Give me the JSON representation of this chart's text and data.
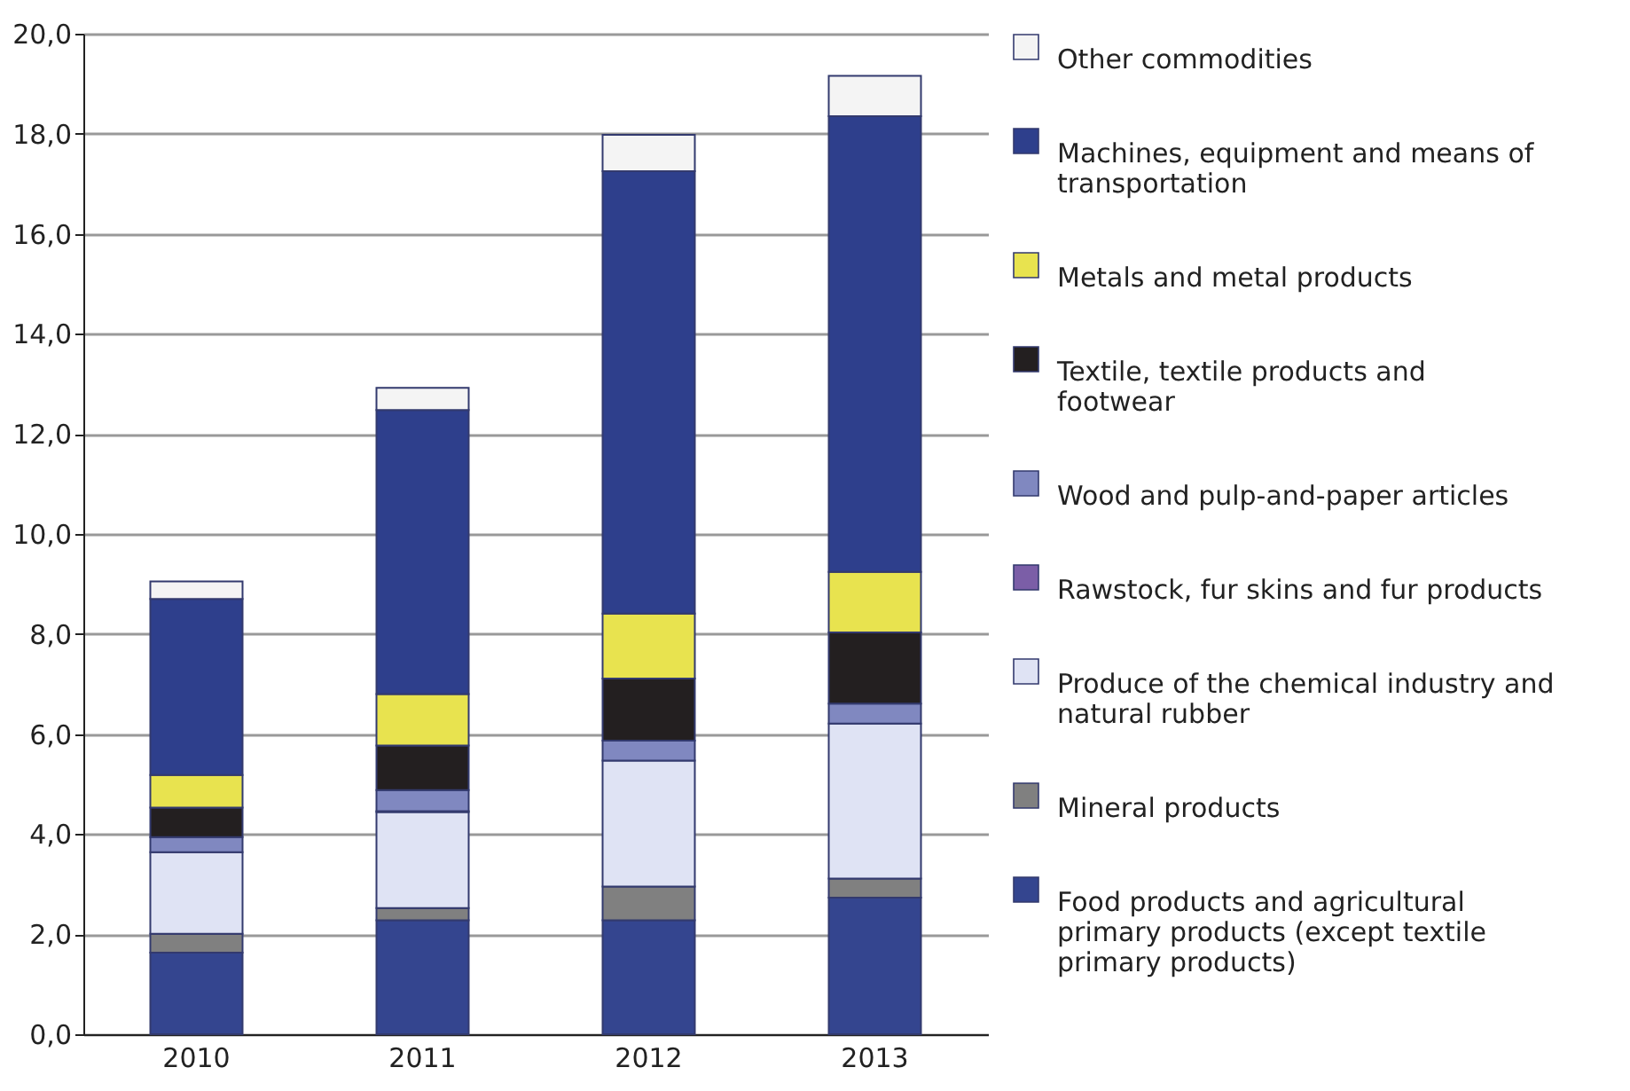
{
  "chart_data": {
    "type": "bar",
    "stacked": true,
    "categories": [
      "2010",
      "2011",
      "2012",
      "2013"
    ],
    "series": [
      {
        "name": "Food products and agricultural primary products (except textile primary products)",
        "color": "#34458f",
        "values": [
          1.63,
          2.28,
          2.28,
          2.73
        ]
      },
      {
        "name": "Mineral products",
        "color": "#808080",
        "values": [
          0.38,
          0.24,
          0.67,
          0.38
        ]
      },
      {
        "name": "Produce of the chemical industry and natural rubber",
        "color": "#dfe3f4",
        "values": [
          1.63,
          1.92,
          2.52,
          3.1
        ]
      },
      {
        "name": "Rawstock, fur skins and fur products",
        "color": "#7b5ea7",
        "values": [
          null,
          0.02,
          null,
          null
        ]
      },
      {
        "name": "Wood and pulp-and-paper articles",
        "color": "#8088c0",
        "values": [
          0.3,
          0.42,
          0.4,
          0.4
        ]
      },
      {
        "name": "Textile, textile products and footwear",
        "color": "#231f20",
        "values": [
          0.59,
          0.89,
          1.24,
          1.42
        ]
      },
      {
        "name": "Metals and metal products",
        "color": "#e8e34f",
        "values": [
          0.65,
          1.03,
          1.3,
          1.21
        ]
      },
      {
        "name": "Machines, equipment and means of transportation",
        "color": "#2e3f8c",
        "values": [
          3.52,
          5.68,
          8.84,
          9.11
        ]
      },
      {
        "name": "Other commodities",
        "color": "#f4f4f4",
        "values": [
          0.35,
          0.44,
          0.73,
          0.81
        ]
      }
    ],
    "ylim": [
      0,
      20
    ],
    "yticks": [
      {
        "value": 0,
        "label": "0,0"
      },
      {
        "value": 2,
        "label": "2,0"
      },
      {
        "value": 4,
        "label": "4,0"
      },
      {
        "value": 6,
        "label": "6,0"
      },
      {
        "value": 8,
        "label": "8,0"
      },
      {
        "value": 10,
        "label": "10,0"
      },
      {
        "value": 12,
        "label": "12,0"
      },
      {
        "value": 14,
        "label": "14,0"
      },
      {
        "value": 16,
        "label": "16,0"
      },
      {
        "value": 18,
        "label": "18,0"
      },
      {
        "value": 20,
        "label": "20,0"
      }
    ],
    "grid": "y",
    "legend": "right"
  }
}
